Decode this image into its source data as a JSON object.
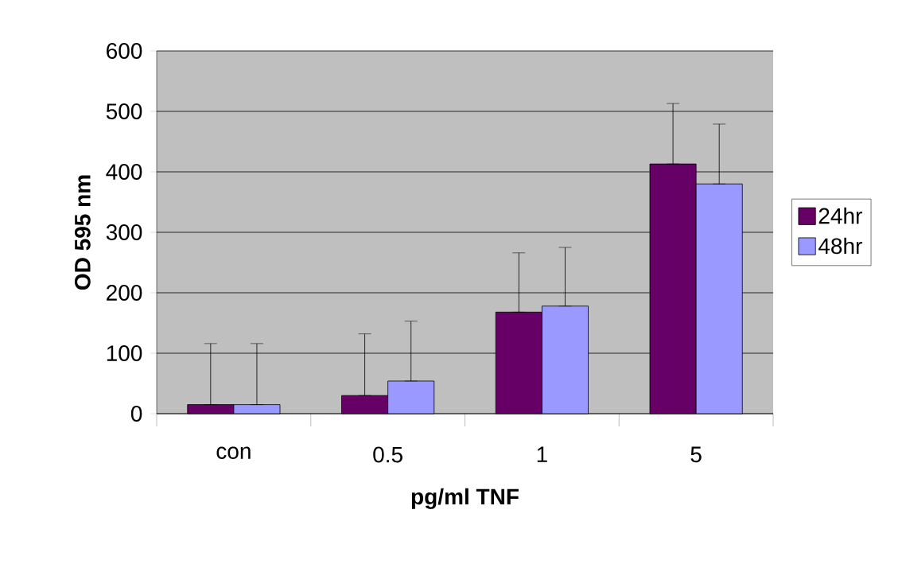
{
  "chart_data": {
    "type": "bar",
    "xlabel": "pg/ml TNF",
    "ylabel": "OD 595 nm",
    "categories": [
      "con",
      "0.5",
      "1",
      "5"
    ],
    "series": [
      {
        "name": "24hr",
        "color": "#660066",
        "values": [
          15,
          30,
          168,
          413
        ],
        "errors": [
          [
            15,
            116
          ],
          [
            30,
            132
          ],
          [
            168,
            266
          ],
          [
            413,
            513
          ]
        ]
      },
      {
        "name": "48hr",
        "color": "#9999ff",
        "values": [
          15,
          54,
          178,
          380
        ],
        "errors": [
          [
            15,
            116
          ],
          [
            54,
            153
          ],
          [
            178,
            275
          ],
          [
            380,
            479
          ]
        ]
      }
    ],
    "ylim": [
      0,
      600
    ],
    "yticks": [
      0,
      100,
      200,
      300,
      400,
      500,
      600
    ],
    "grid": "y",
    "legend": "right"
  }
}
